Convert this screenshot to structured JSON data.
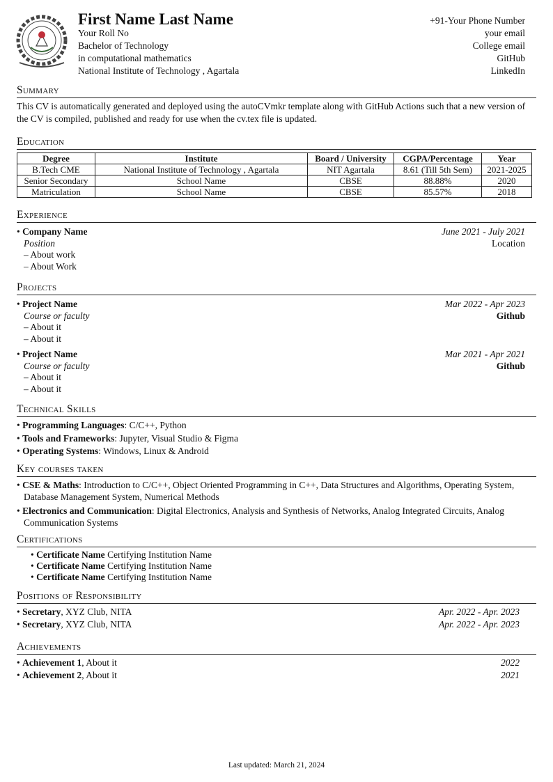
{
  "header": {
    "name": "First Name Last Name",
    "left": [
      "Your Roll No",
      "Bachelor of Technology",
      "in computational mathematics",
      "National Institute of Technology , Agartala"
    ],
    "right": [
      "+91-Your Phone Number",
      "your email",
      "College email",
      "GitHub",
      "LinkedIn"
    ],
    "logo_icon": "institute-seal"
  },
  "summary": {
    "title": "Summary",
    "text": "This CV is automatically generated and deployed using the autoCVmkr template along with GitHub Actions such that a new version of the CV is compiled, published and ready for use when the cv.tex file is updated."
  },
  "education": {
    "title": "Education",
    "headers": [
      "Degree",
      "Institute",
      "Board / University",
      "CGPA/Percentage",
      "Year"
    ],
    "rows": [
      [
        "B.Tech CME",
        "National Institute of Technology , Agartala",
        "NIT Agartala",
        "8.61 (Till 5th Sem)",
        "2021-2025"
      ],
      [
        "Senior Secondary",
        "School Name",
        "CBSE",
        "88.88%",
        "2020"
      ],
      [
        "Matriculation",
        "School Name",
        "CBSE",
        "85.57%",
        "2018"
      ]
    ]
  },
  "experience": {
    "title": "Experience",
    "items": [
      {
        "company": "Company Name",
        "dates": "June 2021 - July 2021",
        "position": "Position",
        "location": "Location",
        "points": [
          "About work",
          "About Work"
        ]
      }
    ]
  },
  "projects": {
    "title": "Projects",
    "items": [
      {
        "name": "Project Name",
        "dates": "Mar 2022 - Apr 2023",
        "course": "Course or faculty",
        "link": "Github",
        "points": [
          "About it",
          "About it"
        ]
      },
      {
        "name": "Project Name",
        "dates": "Mar 2021 - Apr 2021",
        "course": "Course or faculty",
        "link": "Github",
        "points": [
          "About it",
          "About it"
        ]
      }
    ]
  },
  "skills": {
    "title": "Technical Skills",
    "items": [
      {
        "label": "Programming Languages",
        "value": ": C/C++, Python"
      },
      {
        "label": "Tools and Frameworks",
        "value": ": Jupyter, Visual Studio & Figma"
      },
      {
        "label": "Operating Systems",
        "value": ": Windows, Linux & Android"
      }
    ]
  },
  "courses": {
    "title": "Key courses taken",
    "items": [
      {
        "label": "CSE & Maths",
        "value": ": Introduction to C/C++, Object Oriented Programming in C++, Data Structures and Algorithms, Operating System, Database Management System, Numerical Methods"
      },
      {
        "label": "Electronics and Communication",
        "value": ": Digital Electronics, Analysis and Synthesis of Networks, Analog Integrated Circuits, Analog Communication Systems"
      }
    ]
  },
  "certifications": {
    "title": "Certifications",
    "items": [
      {
        "name": "Certificate Name",
        "org": "Certifying Institution Name"
      },
      {
        "name": "Certificate Name",
        "org": "Certifying Institution Name"
      },
      {
        "name": "Certificate Name",
        "org": "Certifying Institution Name"
      }
    ]
  },
  "positions": {
    "title": "Positions of Responsibility",
    "items": [
      {
        "role": "Secretary",
        "org": ", XYZ Club, NITA",
        "dates": "Apr. 2022 - Apr. 2023"
      },
      {
        "role": "Secretary",
        "org": ", XYZ Club, NITA",
        "dates": "Apr. 2022 - Apr. 2023"
      }
    ]
  },
  "achievements": {
    "title": "Achievements",
    "items": [
      {
        "name": "Achievement 1",
        "text": ", About it",
        "year": "2022"
      },
      {
        "name": "Achievement 2",
        "text": ", About it",
        "year": "2021"
      }
    ]
  },
  "footer": "Last updated: March 21, 2024"
}
